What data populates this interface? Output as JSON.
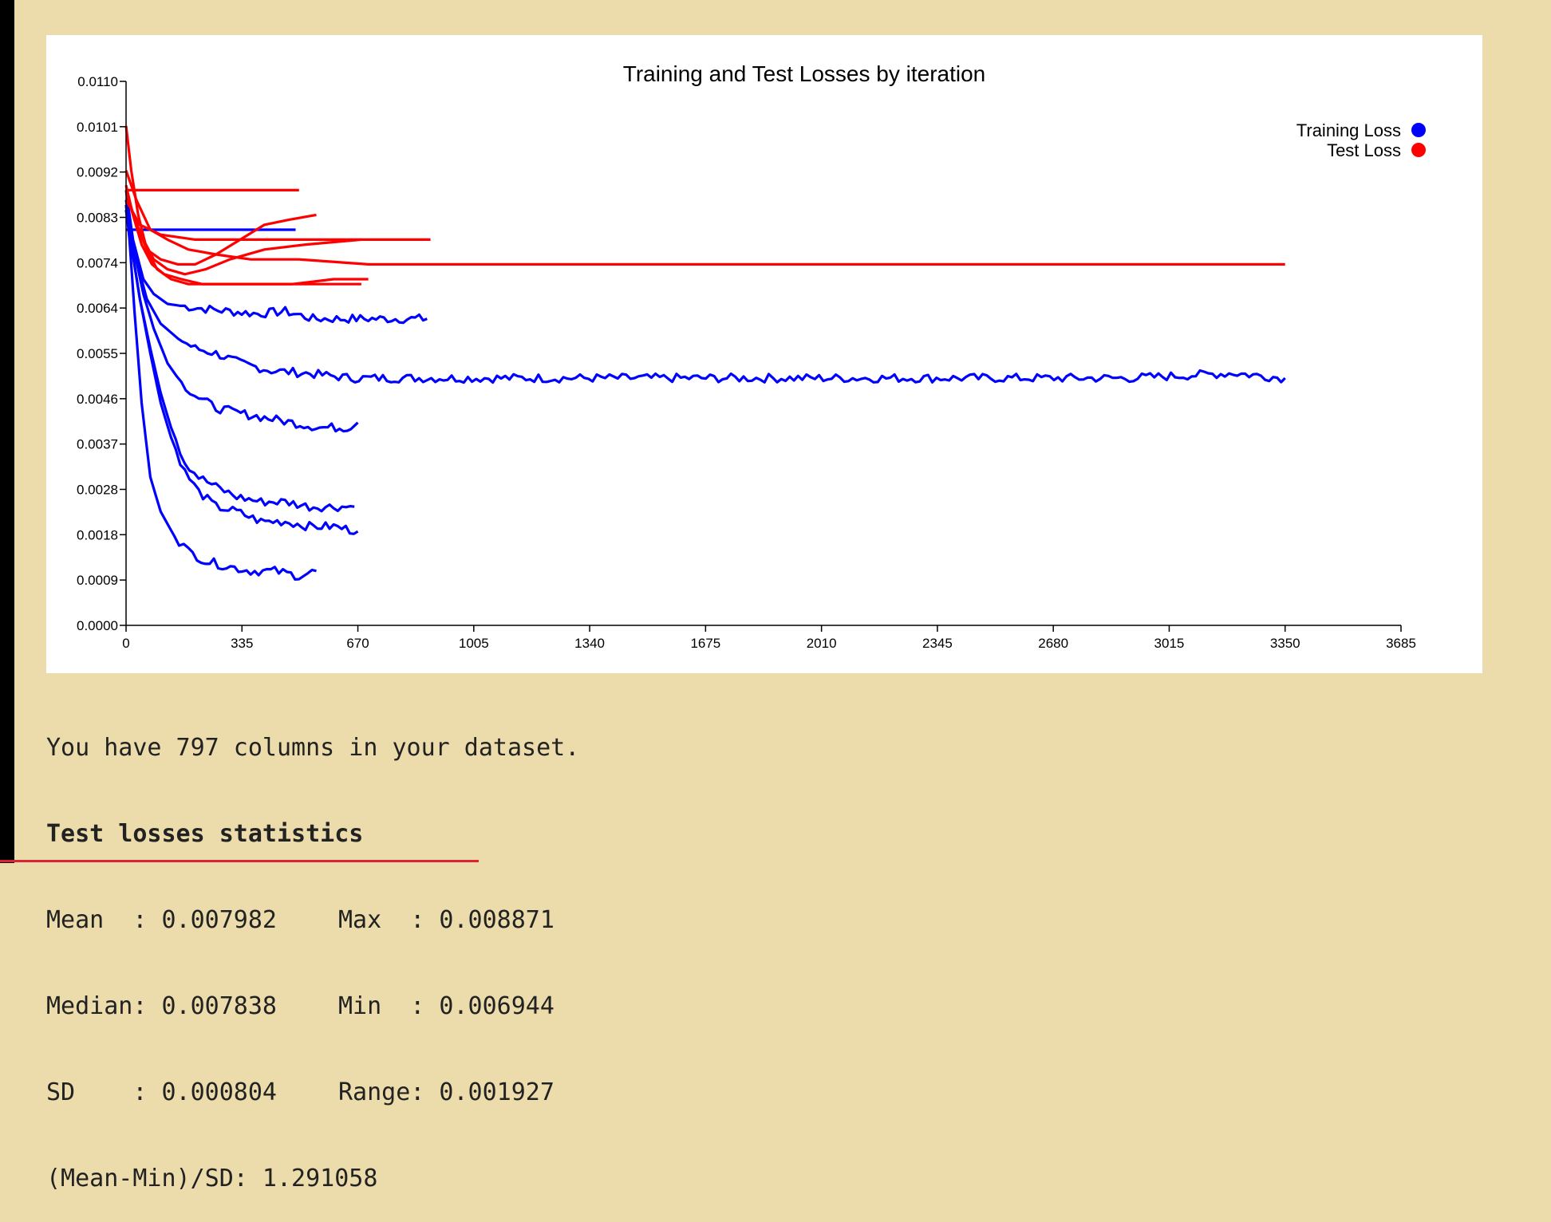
{
  "chart_data": {
    "type": "line",
    "title": "Training and Test Losses by iteration",
    "xlabel": "",
    "ylabel": "",
    "xlim": [
      0,
      3685
    ],
    "ylim": [
      0.0,
      0.011
    ],
    "x_ticks": [
      "0",
      "335",
      "670",
      "1005",
      "1340",
      "1675",
      "2010",
      "2345",
      "2680",
      "3015",
      "3350",
      "3685"
    ],
    "y_ticks": [
      "0.0000",
      "0.0009",
      "0.0018",
      "0.0028",
      "0.0037",
      "0.0046",
      "0.0055",
      "0.0064",
      "0.0074",
      "0.0083",
      "0.0092",
      "0.0101",
      "0.0110"
    ],
    "legend": {
      "position": "top-right",
      "entries": [
        {
          "label": "Training Loss",
          "color": "#0000ff"
        },
        {
          "label": "Test Loss",
          "color": "#ff0000"
        }
      ]
    },
    "series": [
      {
        "kind": "train",
        "color": "#0000ff",
        "x": [
          0,
          490
        ],
        "y": [
          0.008,
          0.008
        ]
      },
      {
        "kind": "train",
        "color": "#0000ff",
        "x": [
          0,
          20,
          50,
          80,
          120,
          170,
          230,
          300,
          380,
          460,
          540,
          620,
          700,
          790,
          870
        ],
        "y": [
          0.0088,
          0.0078,
          0.007,
          0.0067,
          0.0065,
          0.00645,
          0.0064,
          0.00635,
          0.0063,
          0.00635,
          0.0062,
          0.0062,
          0.0062,
          0.0062,
          0.0062
        ]
      },
      {
        "kind": "train",
        "color": "#0000ff",
        "x": [
          0,
          25,
          60,
          100,
          150,
          200,
          260,
          330,
          420,
          520,
          650,
          800,
          1000,
          1300,
          1700,
          2100,
          2500,
          2900,
          3200,
          3350
        ],
        "y": [
          0.0085,
          0.0075,
          0.0066,
          0.0061,
          0.0058,
          0.0056,
          0.0055,
          0.0053,
          0.00515,
          0.0051,
          0.005,
          0.005,
          0.005,
          0.005,
          0.005,
          0.005,
          0.005,
          0.005,
          0.0051,
          0.005
        ]
      },
      {
        "kind": "train",
        "color": "#0000ff",
        "x": [
          0,
          20,
          50,
          80,
          120,
          160,
          210,
          260,
          320,
          400,
          480,
          560,
          640,
          670
        ],
        "y": [
          0.0086,
          0.0077,
          0.0067,
          0.006,
          0.0053,
          0.0049,
          0.0046,
          0.0044,
          0.0043,
          0.0042,
          0.0041,
          0.004,
          0.004,
          0.0041
        ]
      },
      {
        "kind": "train",
        "color": "#0000ff",
        "x": [
          0,
          15,
          40,
          70,
          100,
          130,
          170,
          210,
          260,
          320,
          390,
          460,
          530,
          600,
          660
        ],
        "y": [
          0.0084,
          0.0077,
          0.0066,
          0.0056,
          0.0047,
          0.004,
          0.0033,
          0.003,
          0.0028,
          0.0026,
          0.0025,
          0.0025,
          0.0024,
          0.0024,
          0.0024
        ]
      },
      {
        "kind": "train",
        "color": "#0000ff",
        "x": [
          0,
          15,
          40,
          70,
          100,
          130,
          170,
          210,
          260,
          320,
          390,
          460,
          530,
          600,
          670
        ],
        "y": [
          0.0084,
          0.0077,
          0.0066,
          0.0055,
          0.0045,
          0.0038,
          0.0031,
          0.0027,
          0.0024,
          0.0023,
          0.0021,
          0.0021,
          0.002,
          0.002,
          0.0019
        ]
      },
      {
        "kind": "train",
        "color": "#0000ff",
        "x": [
          0,
          10,
          25,
          45,
          70,
          100,
          140,
          180,
          230,
          290,
          360,
          430,
          500,
          550
        ],
        "y": [
          0.0085,
          0.0078,
          0.0063,
          0.0045,
          0.003,
          0.0023,
          0.0018,
          0.0015,
          0.0013,
          0.0012,
          0.0011,
          0.0011,
          0.001,
          0.0011
        ]
      },
      {
        "kind": "test",
        "color": "#ff0000",
        "x": [
          0,
          500
        ],
        "y": [
          0.0088,
          0.0088
        ]
      },
      {
        "kind": "test",
        "color": "#ff0000",
        "x": [
          0,
          30,
          60,
          100,
          150,
          200,
          260,
          330,
          400,
          470,
          550
        ],
        "y": [
          0.0088,
          0.0081,
          0.0076,
          0.0074,
          0.0073,
          0.0073,
          0.0075,
          0.0078,
          0.0081,
          0.0082,
          0.0083
        ]
      },
      {
        "kind": "test",
        "color": "#ff0000",
        "x": [
          0,
          40,
          100,
          200,
          300,
          400,
          500,
          600,
          700,
          880
        ],
        "y": [
          0.0086,
          0.0081,
          0.0079,
          0.0078,
          0.0078,
          0.0078,
          0.0078,
          0.0078,
          0.0078,
          0.0078
        ]
      },
      {
        "kind": "test",
        "color": "#ff0000",
        "x": [
          0,
          20,
          50,
          80,
          120,
          170,
          230,
          300,
          400,
          520,
          680
        ],
        "y": [
          0.0088,
          0.0083,
          0.0078,
          0.0074,
          0.0072,
          0.0071,
          0.0072,
          0.0074,
          0.0076,
          0.0077,
          0.0078
        ]
      },
      {
        "kind": "test",
        "color": "#ff0000",
        "x": [
          0,
          30,
          70,
          120,
          180,
          260,
          360,
          500,
          700,
          1000,
          1500,
          2000,
          2500,
          3000,
          3350
        ],
        "y": [
          0.0092,
          0.0086,
          0.008,
          0.0078,
          0.0076,
          0.0075,
          0.0074,
          0.0074,
          0.0073,
          0.0073,
          0.0073,
          0.0073,
          0.0073,
          0.0073,
          0.0073
        ]
      },
      {
        "kind": "test",
        "color": "#ff0000",
        "x": [
          0,
          15,
          35,
          60,
          90,
          130,
          180,
          250,
          350,
          480,
          600,
          700
        ],
        "y": [
          0.0101,
          0.0092,
          0.0083,
          0.0076,
          0.0072,
          0.007,
          0.0069,
          0.0069,
          0.0069,
          0.0069,
          0.007,
          0.007
        ]
      },
      {
        "kind": "test",
        "color": "#ff0000",
        "x": [
          0,
          20,
          45,
          75,
          110,
          160,
          220,
          300,
          400,
          520,
          680
        ],
        "y": [
          0.0089,
          0.0083,
          0.0077,
          0.0073,
          0.0071,
          0.007,
          0.0069,
          0.0069,
          0.0069,
          0.0069,
          0.0069
        ]
      }
    ]
  },
  "stats": {
    "columns_line": "You have 797 columns in your dataset.",
    "heading": "Test losses statistics",
    "rows": [
      [
        "Mean  : 0.007982",
        "Max  : 0.008871"
      ],
      [
        "Median: 0.007838",
        "Min  : 0.006944"
      ],
      [
        "SD    : 0.000804",
        "Range: 0.001927"
      ]
    ],
    "ratio_line": "(Mean-Min)/SD: 1.291058"
  }
}
